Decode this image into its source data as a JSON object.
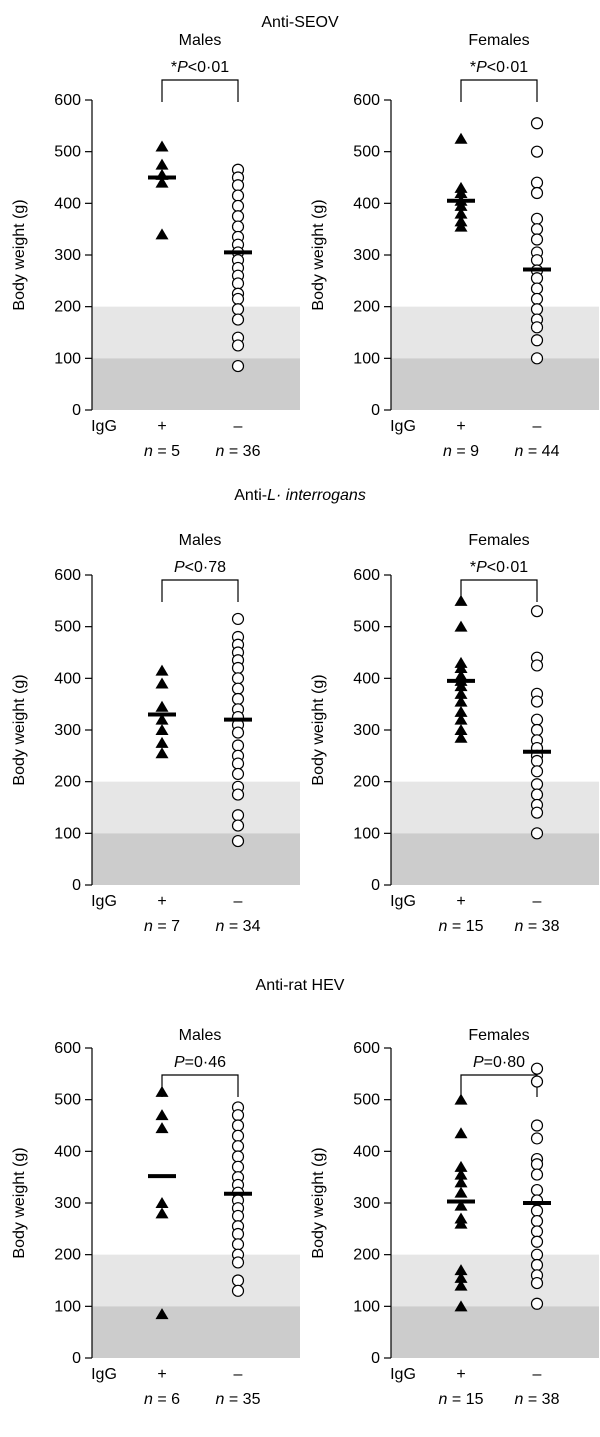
{
  "figure": {
    "sections": [
      {
        "title_prefix": "Anti-SEOV",
        "title_italic": "",
        "title_suffix": ""
      },
      {
        "title_prefix": "Anti-",
        "title_italic": "L· interrogans",
        "title_suffix": ""
      },
      {
        "title_prefix": "Anti-rat HEV",
        "title_italic": "",
        "title_suffix": ""
      }
    ],
    "y_axis_label": "Body weight (g)",
    "x_row_label": "IgG",
    "group_labels": [
      "+",
      "–"
    ],
    "n_symbol": "n",
    "band_colors": {
      "light": "#e6e6e6",
      "dark": "#cccccc"
    },
    "bands": [
      [
        100,
        200
      ],
      [
        0,
        100
      ]
    ]
  },
  "chart_data": [
    {
      "type": "scatter",
      "section": 0,
      "panel": "Males",
      "title": "Males",
      "p_star": "*",
      "p_var": "P",
      "p_rest": "<0·01",
      "ylim": [
        0,
        600
      ],
      "yticks": [
        0,
        100,
        200,
        300,
        400,
        500,
        600
      ],
      "n_labels": [
        "5",
        "36"
      ],
      "series": [
        {
          "name": "+",
          "marker": "triangle",
          "values": [
            510,
            475,
            455,
            440,
            340
          ],
          "mean": 450
        },
        {
          "name": "–",
          "marker": "circle",
          "values": [
            465,
            450,
            435,
            415,
            395,
            375,
            355,
            335,
            320,
            305,
            290,
            275,
            260,
            245,
            225,
            215,
            195,
            175,
            140,
            125,
            85
          ],
          "mean": 305
        }
      ]
    },
    {
      "type": "scatter",
      "section": 0,
      "panel": "Females",
      "title": "Females",
      "p_star": "*",
      "p_var": "P",
      "p_rest": "<0·01",
      "ylim": [
        0,
        600
      ],
      "yticks": [
        0,
        100,
        200,
        300,
        400,
        500,
        600
      ],
      "n_labels": [
        "9",
        "44"
      ],
      "series": [
        {
          "name": "+",
          "marker": "triangle",
          "values": [
            525,
            430,
            420,
            405,
            395,
            380,
            365,
            355
          ],
          "mean": 405
        },
        {
          "name": "–",
          "marker": "circle",
          "values": [
            555,
            500,
            440,
            420,
            370,
            350,
            330,
            305,
            290,
            270,
            255,
            235,
            215,
            195,
            175,
            160,
            135,
            100
          ],
          "mean": 272
        }
      ]
    },
    {
      "type": "scatter",
      "section": 1,
      "panel": "Males",
      "title": "Males",
      "p_star": "",
      "p_var": "P",
      "p_rest": "<0·78",
      "ylim": [
        0,
        600
      ],
      "yticks": [
        0,
        100,
        200,
        300,
        400,
        500,
        600
      ],
      "n_labels": [
        "7",
        "34"
      ],
      "series": [
        {
          "name": "+",
          "marker": "triangle",
          "values": [
            415,
            390,
            345,
            320,
            300,
            275,
            255
          ],
          "mean": 330
        },
        {
          "name": "–",
          "marker": "circle",
          "values": [
            515,
            480,
            465,
            450,
            435,
            420,
            400,
            380,
            360,
            340,
            325,
            310,
            295,
            270,
            250,
            235,
            215,
            190,
            175,
            135,
            115,
            85
          ],
          "mean": 320
        }
      ]
    },
    {
      "type": "scatter",
      "section": 1,
      "panel": "Females",
      "title": "Females",
      "p_star": "*",
      "p_var": "P",
      "p_rest": "<0·01",
      "ylim": [
        0,
        600
      ],
      "yticks": [
        0,
        100,
        200,
        300,
        400,
        500,
        600
      ],
      "n_labels": [
        "15",
        "38"
      ],
      "series": [
        {
          "name": "+",
          "marker": "triangle",
          "values": [
            550,
            500,
            430,
            420,
            405,
            395,
            385,
            370,
            355,
            335,
            320,
            300,
            285
          ],
          "mean": 395
        },
        {
          "name": "–",
          "marker": "circle",
          "values": [
            530,
            440,
            425,
            370,
            355,
            320,
            300,
            280,
            265,
            250,
            240,
            220,
            195,
            175,
            155,
            140,
            100
          ],
          "mean": 258
        }
      ]
    },
    {
      "type": "scatter",
      "section": 2,
      "panel": "Males",
      "title": "Males",
      "p_star": "",
      "p_var": "P",
      "p_rest": "=0·46",
      "ylim": [
        0,
        600
      ],
      "yticks": [
        0,
        100,
        200,
        300,
        400,
        500,
        600
      ],
      "n_labels": [
        "6",
        "35"
      ],
      "series": [
        {
          "name": "+",
          "marker": "triangle",
          "values": [
            515,
            470,
            445,
            300,
            280,
            85
          ],
          "mean": 352
        },
        {
          "name": "–",
          "marker": "circle",
          "values": [
            485,
            470,
            450,
            430,
            410,
            390,
            370,
            350,
            335,
            320,
            305,
            290,
            275,
            255,
            240,
            220,
            200,
            185,
            150,
            130
          ],
          "mean": 318
        }
      ]
    },
    {
      "type": "scatter",
      "section": 2,
      "panel": "Females",
      "title": "Females",
      "p_star": "",
      "p_var": "P",
      "p_rest": "=0·80",
      "ylim": [
        0,
        600
      ],
      "yticks": [
        0,
        100,
        200,
        300,
        400,
        500,
        600
      ],
      "n_labels": [
        "15",
        "38"
      ],
      "series": [
        {
          "name": "+",
          "marker": "triangle",
          "values": [
            500,
            435,
            370,
            355,
            340,
            320,
            295,
            270,
            260,
            170,
            155,
            140,
            100
          ],
          "mean": 303
        },
        {
          "name": "–",
          "marker": "circle",
          "values": [
            560,
            535,
            450,
            425,
            385,
            375,
            355,
            325,
            305,
            285,
            265,
            245,
            225,
            200,
            180,
            160,
            145,
            105
          ],
          "mean": 300
        }
      ]
    }
  ]
}
